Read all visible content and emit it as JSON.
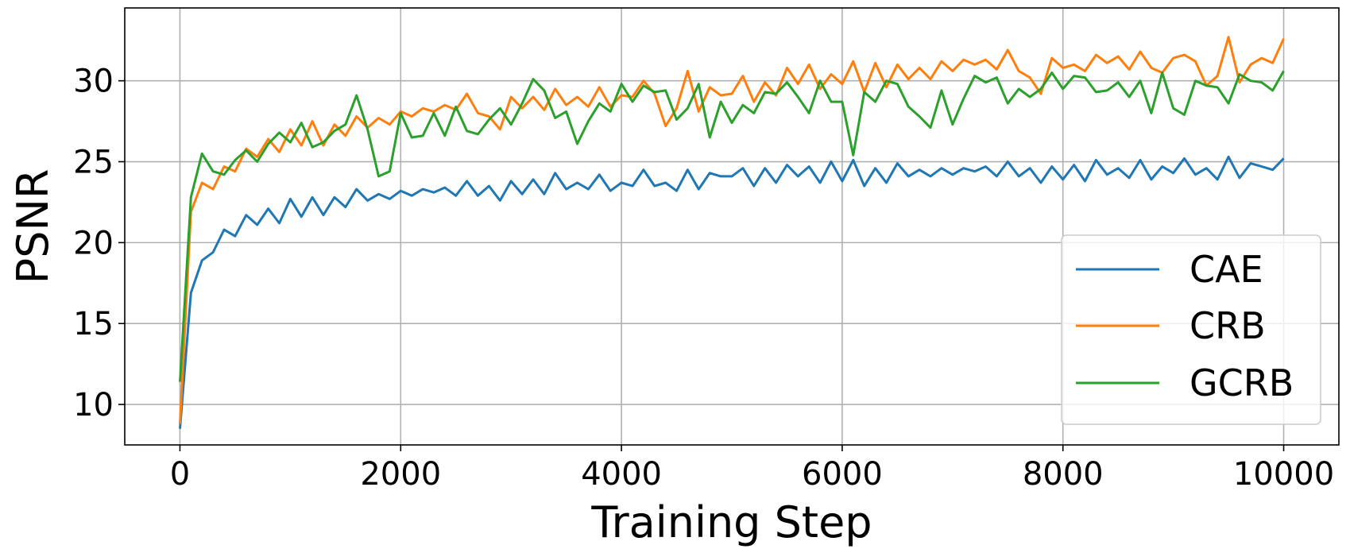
{
  "chart_data": {
    "type": "line",
    "xlabel": "Training Step",
    "ylabel": "PSNR",
    "xlim": [
      -500,
      10500
    ],
    "ylim": [
      7.5,
      34.5
    ],
    "xticks": [
      0,
      2000,
      4000,
      6000,
      8000,
      10000
    ],
    "yticks": [
      10,
      15,
      20,
      25,
      30
    ],
    "grid": true,
    "legend_position": "lower-right",
    "colors": {
      "CAE": "#1f77b4",
      "CRB": "#ff7f0e",
      "GCRB": "#2ca02c"
    },
    "x": [
      0,
      100,
      200,
      300,
      400,
      500,
      600,
      700,
      800,
      900,
      1000,
      1100,
      1200,
      1300,
      1400,
      1500,
      1600,
      1700,
      1800,
      1900,
      2000,
      2100,
      2200,
      2300,
      2400,
      2500,
      2600,
      2700,
      2800,
      2900,
      3000,
      3100,
      3200,
      3300,
      3400,
      3500,
      3600,
      3700,
      3800,
      3900,
      4000,
      4100,
      4200,
      4300,
      4400,
      4500,
      4600,
      4700,
      4800,
      4900,
      5000,
      5100,
      5200,
      5300,
      5400,
      5500,
      5600,
      5700,
      5800,
      5900,
      6000,
      6100,
      6200,
      6300,
      6400,
      6500,
      6600,
      6700,
      6800,
      6900,
      7000,
      7100,
      7200,
      7300,
      7400,
      7500,
      7600,
      7700,
      7800,
      7900,
      8000,
      8100,
      8200,
      8300,
      8400,
      8500,
      8600,
      8700,
      8800,
      8900,
      9000,
      9100,
      9200,
      9300,
      9400,
      9500,
      9600,
      9700,
      9800,
      9900,
      10000
    ],
    "series": [
      {
        "name": "CAE",
        "values": [
          8.5,
          16.9,
          18.9,
          19.4,
          20.8,
          20.4,
          21.7,
          21.1,
          22.1,
          21.2,
          22.7,
          21.6,
          22.8,
          21.7,
          22.8,
          22.2,
          23.3,
          22.6,
          23.0,
          22.7,
          23.2,
          22.9,
          23.3,
          23.1,
          23.4,
          22.9,
          23.8,
          22.9,
          23.5,
          22.6,
          23.8,
          23.0,
          23.9,
          23.0,
          24.3,
          23.3,
          23.7,
          23.3,
          24.2,
          23.2,
          23.7,
          23.5,
          24.5,
          23.5,
          23.7,
          23.2,
          24.5,
          23.3,
          24.3,
          24.1,
          24.1,
          24.6,
          23.5,
          24.6,
          23.7,
          24.8,
          24.1,
          24.7,
          23.7,
          25.0,
          23.8,
          25.1,
          23.5,
          24.6,
          23.7,
          24.9,
          24.1,
          24.5,
          24.1,
          24.6,
          24.2,
          24.6,
          24.4,
          24.7,
          24.1,
          25.0,
          24.1,
          24.6,
          23.7,
          24.7,
          23.9,
          24.8,
          23.8,
          25.1,
          24.2,
          24.6,
          24.0,
          25.1,
          23.9,
          24.7,
          24.3,
          25.2,
          24.2,
          24.6,
          23.9,
          25.3,
          24.0,
          24.9,
          24.7,
          24.5,
          25.2
        ]
      },
      {
        "name": "CRB",
        "values": [
          8.8,
          21.9,
          23.7,
          23.3,
          24.7,
          24.4,
          25.8,
          25.3,
          26.4,
          25.6,
          27.0,
          26.0,
          27.5,
          26.0,
          27.3,
          26.6,
          27.8,
          27.1,
          27.7,
          27.3,
          28.1,
          27.8,
          28.3,
          28.1,
          28.5,
          28.2,
          29.2,
          28.0,
          27.8,
          27.0,
          29.0,
          28.3,
          29.0,
          28.2,
          29.5,
          28.5,
          29.0,
          28.4,
          29.6,
          28.4,
          29.1,
          29.0,
          30.0,
          29.2,
          27.2,
          28.3,
          30.6,
          28.1,
          29.6,
          29.1,
          29.2,
          30.3,
          28.7,
          29.9,
          29.1,
          30.8,
          29.8,
          31.0,
          29.5,
          30.4,
          29.8,
          31.2,
          29.3,
          31.1,
          29.6,
          31.0,
          30.1,
          30.8,
          30.1,
          31.2,
          30.6,
          31.3,
          31.0,
          31.3,
          30.7,
          31.9,
          30.6,
          30.2,
          29.2,
          31.4,
          30.8,
          31.0,
          30.6,
          31.6,
          31.1,
          31.5,
          30.7,
          31.8,
          30.8,
          30.5,
          31.4,
          31.6,
          31.2,
          29.7,
          30.3,
          32.7,
          29.9,
          31.0,
          31.4,
          31.1,
          32.6
        ]
      },
      {
        "name": "GCRB",
        "values": [
          11.4,
          22.8,
          25.5,
          24.4,
          24.2,
          25.1,
          25.7,
          25.0,
          26.1,
          26.8,
          26.2,
          27.4,
          25.9,
          26.2,
          26.9,
          27.3,
          29.1,
          27.0,
          24.1,
          24.4,
          28.0,
          26.5,
          26.6,
          28.0,
          26.6,
          28.4,
          26.9,
          26.7,
          27.6,
          28.3,
          27.3,
          28.6,
          30.1,
          29.4,
          27.7,
          28.1,
          26.1,
          27.5,
          28.6,
          28.1,
          29.8,
          28.7,
          29.7,
          29.3,
          29.4,
          27.6,
          28.3,
          29.8,
          26.5,
          28.7,
          27.4,
          28.5,
          28.0,
          29.3,
          29.2,
          29.9,
          29.0,
          28.0,
          30.0,
          28.7,
          28.7,
          25.4,
          29.3,
          28.7,
          30.0,
          29.8,
          28.4,
          27.8,
          27.1,
          29.4,
          27.3,
          28.9,
          30.3,
          29.9,
          30.2,
          28.6,
          29.5,
          29.0,
          29.5,
          30.5,
          29.5,
          30.3,
          30.2,
          29.3,
          29.4,
          29.9,
          29.0,
          30.0,
          28.0,
          30.5,
          28.3,
          27.9,
          30.0,
          29.7,
          29.6,
          28.6,
          30.4,
          30.0,
          29.9,
          29.4,
          30.6
        ]
      }
    ]
  }
}
